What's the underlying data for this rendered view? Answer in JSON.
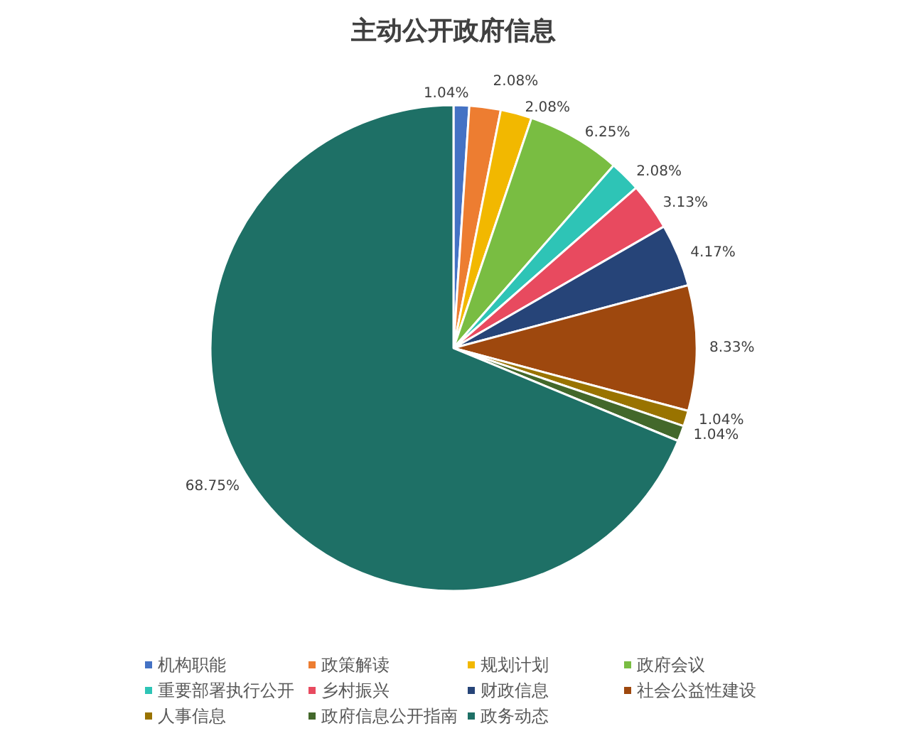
{
  "chart_data": {
    "type": "pie",
    "title": "主动公开政府信息",
    "categories": [
      "机构职能",
      "政策解读",
      "规划计划",
      "政府会议",
      "重要部署执行公开",
      "乡村振兴",
      "财政信息",
      "社会公益性建设",
      "人事信息",
      "政府信息公开指南",
      "政务动态"
    ],
    "values": [
      1.04,
      2.08,
      2.08,
      6.25,
      2.08,
      3.13,
      4.17,
      8.33,
      1.04,
      1.04,
      68.75
    ],
    "value_labels": [
      "1.04%",
      "2.08%",
      "2.08%",
      "6.25%",
      "2.08%",
      "3.13%",
      "4.17%",
      "8.33%",
      "1.04%",
      "1.04%",
      "68.75%"
    ],
    "colors": [
      "#4472c4",
      "#ed7d31",
      "#f2b800",
      "#79bd42",
      "#2ec4b6",
      "#e84a5f",
      "#264478",
      "#9e480e",
      "#997300",
      "#43682b",
      "#1e7066"
    ],
    "legend": "bottom"
  }
}
